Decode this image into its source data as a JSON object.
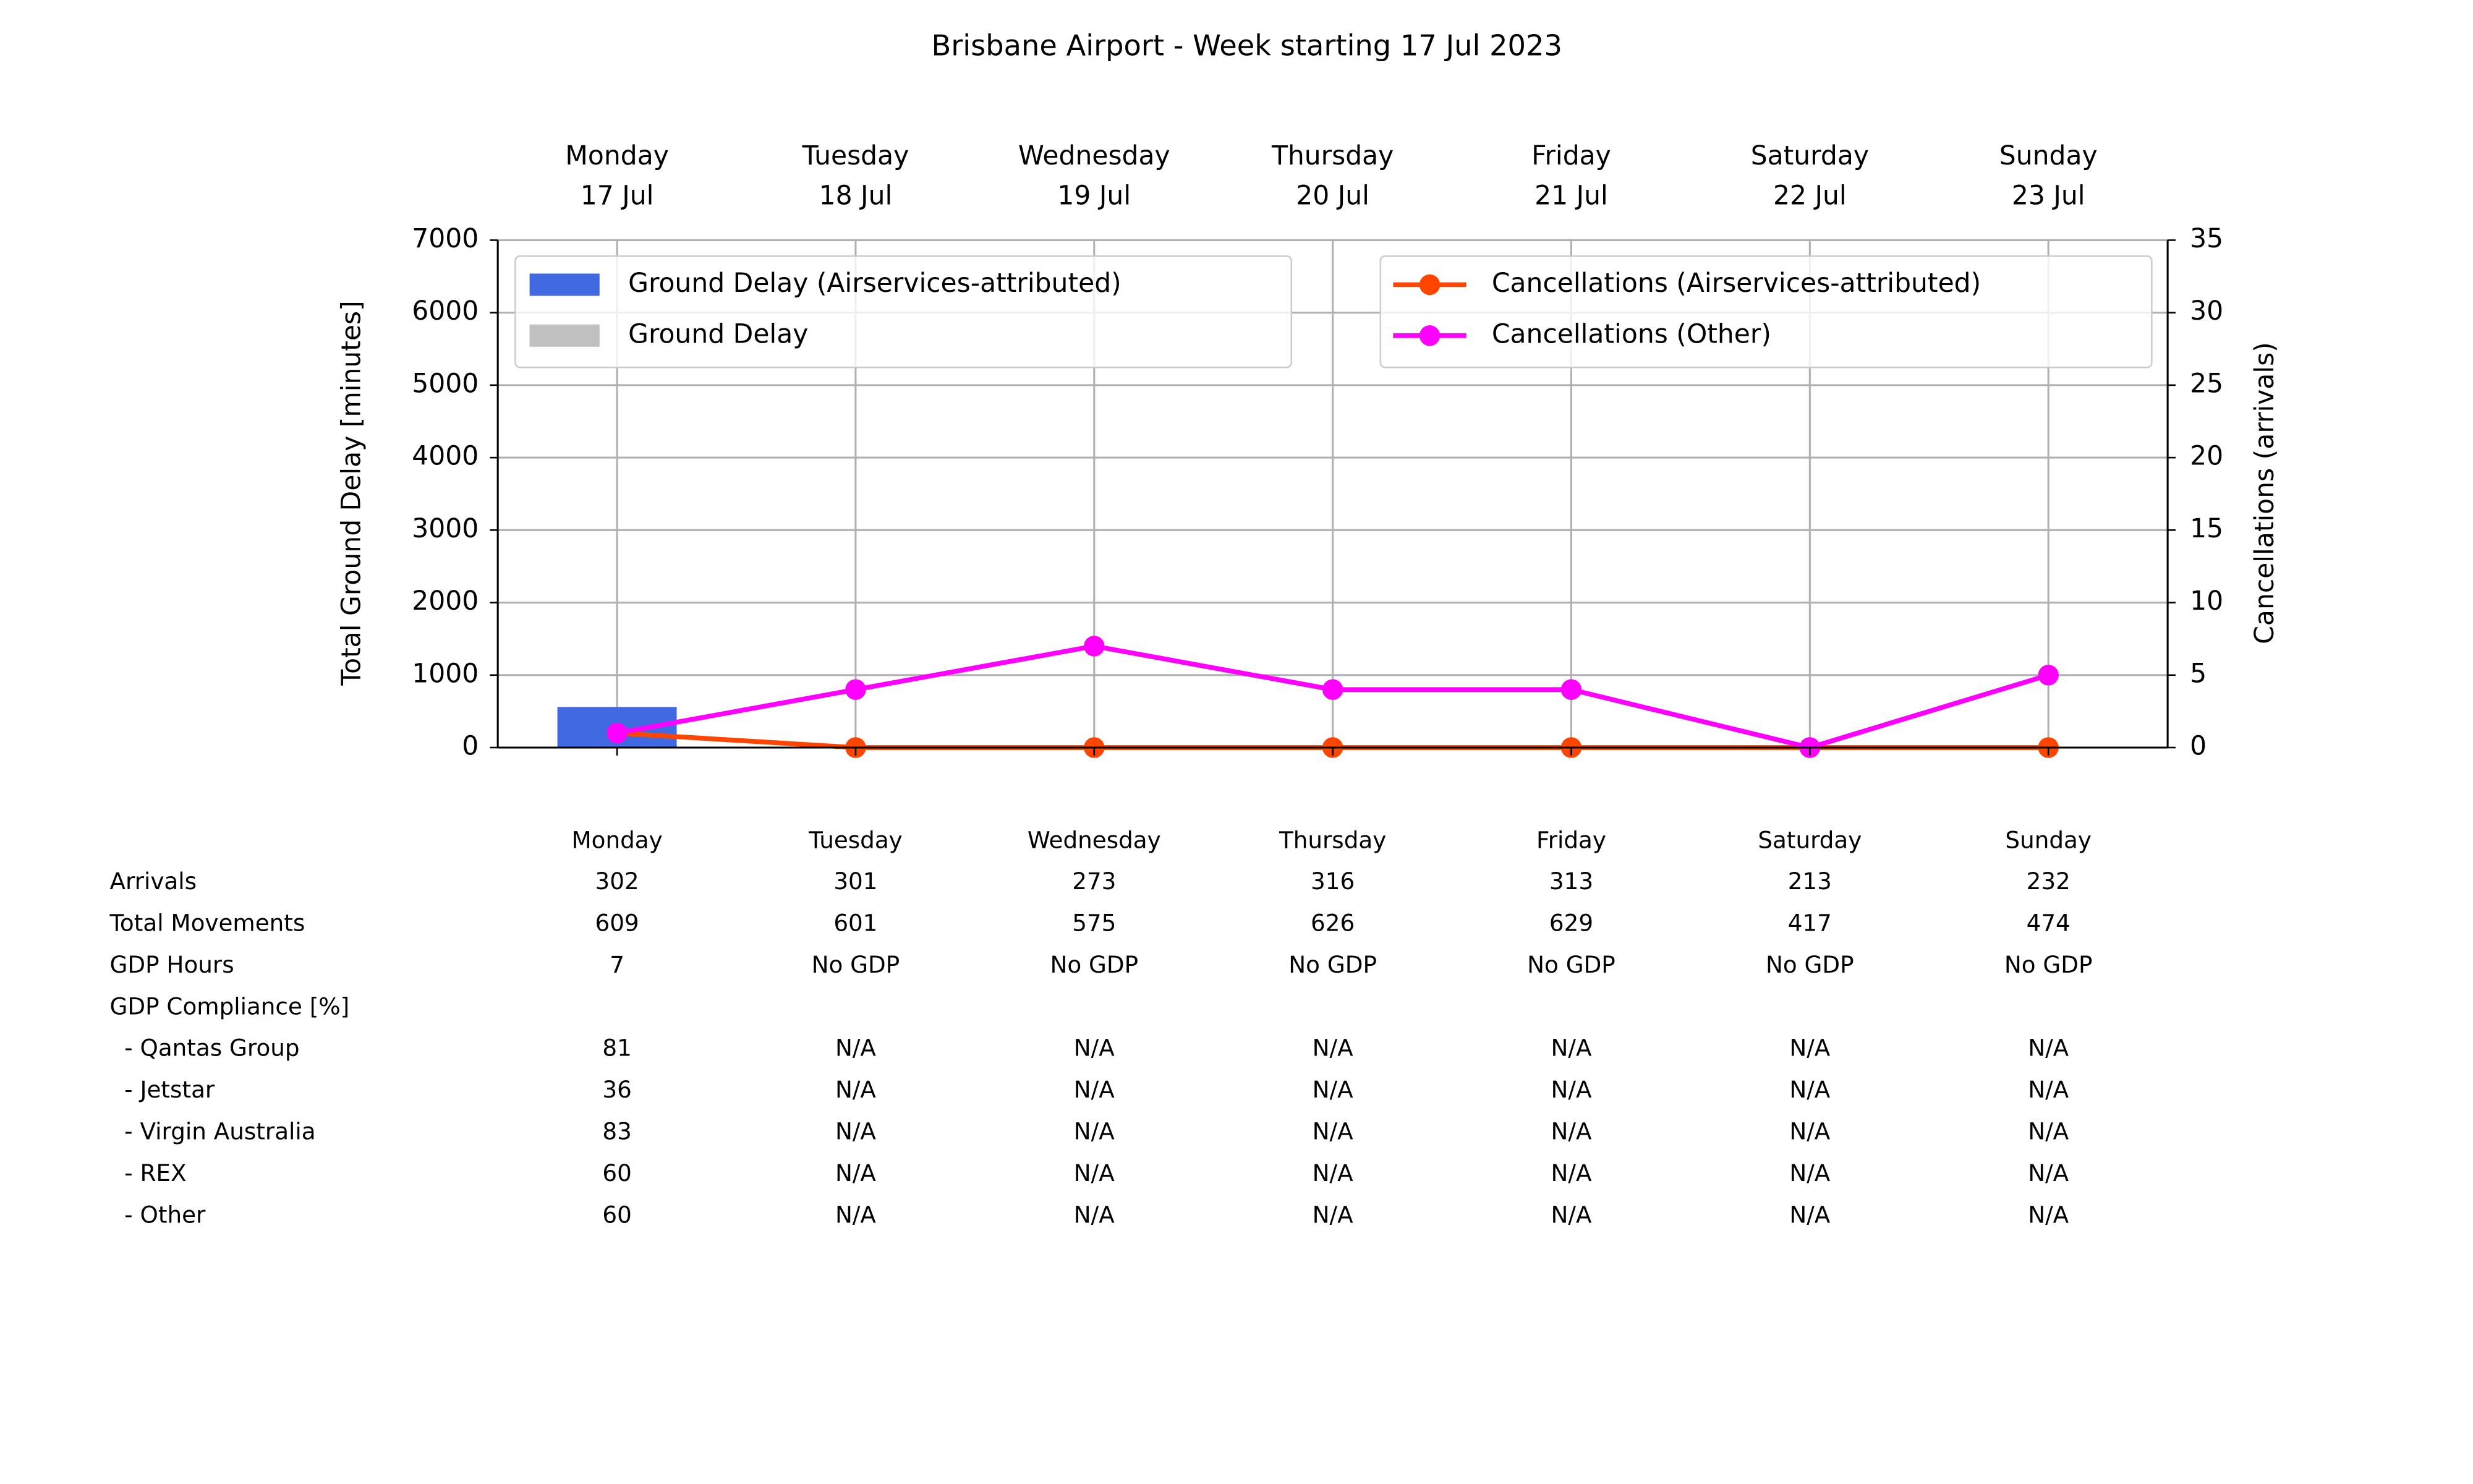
{
  "chart_data": {
    "type": "bar_line",
    "title": "Brisbane Airport - Week starting 17 Jul 2023",
    "categories": [
      "Monday",
      "Tuesday",
      "Wednesday",
      "Thursday",
      "Friday",
      "Saturday",
      "Sunday"
    ],
    "category_dates": [
      "17 Jul",
      "18 Jul",
      "19 Jul",
      "20 Jul",
      "21 Jul",
      "22 Jul",
      "23 Jul"
    ],
    "y_label": "Total Ground Delay [minutes]",
    "y2_label": "Cancellations (arrivals)",
    "ylim": [
      0,
      7000
    ],
    "yticks": [
      0,
      1000,
      2000,
      3000,
      4000,
      5000,
      6000,
      7000
    ],
    "y2lim": [
      0,
      35
    ],
    "y2ticks": [
      0,
      5,
      10,
      15,
      20,
      25,
      30,
      35
    ],
    "grid": true,
    "series": [
      {
        "name": "Ground Delay (Airservices-attributed)",
        "kind": "bar",
        "color": "#4169e1",
        "values": [
          560,
          0,
          0,
          0,
          0,
          0,
          0
        ]
      },
      {
        "name": "Ground Delay",
        "kind": "bar",
        "color": "#c0c0c0",
        "values": [
          560,
          0,
          0,
          0,
          0,
          0,
          0
        ]
      },
      {
        "name": "Cancellations (Airservices-attributed)",
        "kind": "line",
        "axis": "y2",
        "color": "#ff4500",
        "values": [
          1,
          0,
          0,
          0,
          0,
          0,
          0
        ]
      },
      {
        "name": "Cancellations (Other)",
        "kind": "line",
        "axis": "y2",
        "color": "#ff00ff",
        "values": [
          1,
          4,
          7,
          4,
          4,
          0,
          5
        ]
      }
    ],
    "table": {
      "columns": [
        "Monday",
        "Tuesday",
        "Wednesday",
        "Thursday",
        "Friday",
        "Saturday",
        "Sunday"
      ],
      "rows": [
        {
          "label": "Arrivals",
          "cells": [
            302,
            301,
            273,
            316,
            313,
            213,
            232
          ]
        },
        {
          "label": "Total Movements",
          "cells": [
            609,
            601,
            575,
            626,
            629,
            417,
            474
          ]
        },
        {
          "label": "GDP Hours",
          "cells": [
            7,
            "No GDP",
            "No GDP",
            "No GDP",
            "No GDP",
            "No GDP",
            "No GDP"
          ]
        },
        {
          "label": "GDP Compliance [%]",
          "cells": []
        },
        {
          "label": "  - Qantas Group",
          "cells": [
            81,
            "N/A",
            "N/A",
            "N/A",
            "N/A",
            "N/A",
            "N/A"
          ]
        },
        {
          "label": "  - Jetstar",
          "cells": [
            36,
            "N/A",
            "N/A",
            "N/A",
            "N/A",
            "N/A",
            "N/A"
          ]
        },
        {
          "label": "  - Virgin Australia",
          "cells": [
            83,
            "N/A",
            "N/A",
            "N/A",
            "N/A",
            "N/A",
            "N/A"
          ]
        },
        {
          "label": "  - REX",
          "cells": [
            60,
            "N/A",
            "N/A",
            "N/A",
            "N/A",
            "N/A",
            "N/A"
          ]
        },
        {
          "label": "  - Other",
          "cells": [
            60,
            "N/A",
            "N/A",
            "N/A",
            "N/A",
            "N/A",
            "N/A"
          ]
        }
      ]
    }
  }
}
